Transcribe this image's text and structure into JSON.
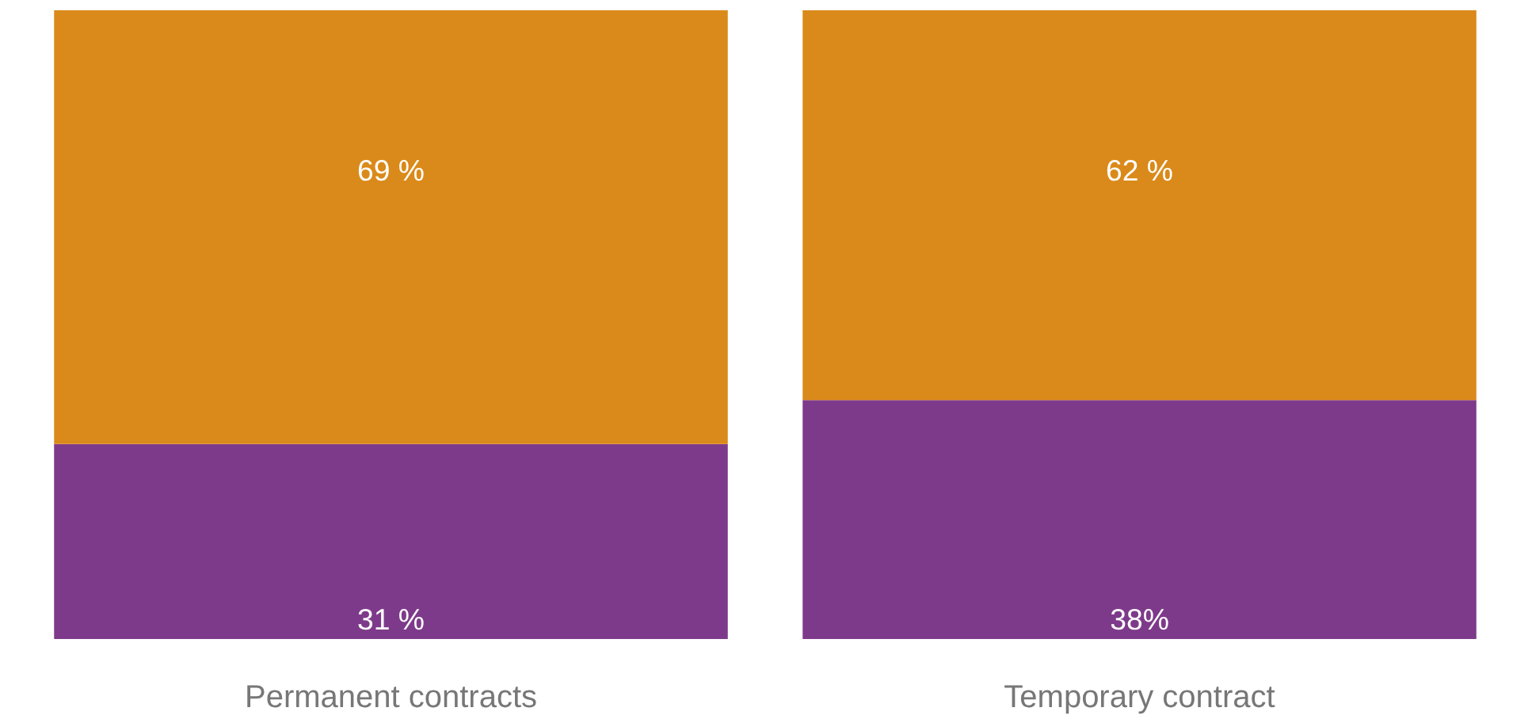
{
  "chart_data": {
    "type": "bar",
    "stacked": true,
    "categories": [
      "Permanent contracts",
      "Temporary contract"
    ],
    "series": [
      {
        "color": "#7e3a8a",
        "values": [
          31,
          38
        ],
        "value_labels": [
          "31 %",
          "38%"
        ]
      },
      {
        "color": "#da8a1a",
        "values": [
          69,
          62
        ],
        "value_labels": [
          "69 %",
          "62 %"
        ]
      }
    ],
    "ylim": [
      0,
      100
    ],
    "tick_labels": "x",
    "grid": false
  }
}
